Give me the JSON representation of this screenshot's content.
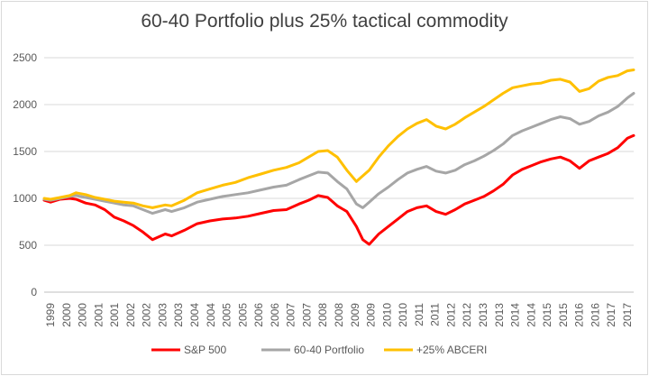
{
  "chart_data": {
    "type": "line",
    "title": "60-40 Portfolio plus 25% tactical commodity",
    "xlabel": "",
    "ylabel": "",
    "ylim": [
      0,
      2500
    ],
    "yticks": [
      "0",
      "500",
      "1000",
      "1500",
      "2000",
      "2500"
    ],
    "xticks": [
      "1999",
      "2000",
      "2000",
      "2001",
      "2001",
      "2002",
      "2002",
      "2003",
      "2003",
      "2004",
      "2004",
      "2005",
      "2005",
      "2006",
      "2006",
      "2007",
      "2007",
      "2008",
      "2008",
      "2009",
      "2009",
      "2010",
      "2010",
      "2011",
      "2011",
      "2012",
      "2012",
      "2013",
      "2013",
      "2014",
      "2014",
      "2015",
      "2015",
      "2016",
      "2016",
      "2017",
      "2017"
    ],
    "grid": "horizontal",
    "legend_position": "bottom",
    "x": [
      1999.0,
      1999.2,
      1999.5,
      1999.8,
      2000.0,
      2000.3,
      2000.6,
      2000.9,
      2001.2,
      2001.5,
      2001.8,
      2002.1,
      2002.4,
      2002.8,
      2003.0,
      2003.4,
      2003.8,
      2004.2,
      2004.6,
      2005.0,
      2005.4,
      2005.8,
      2006.2,
      2006.6,
      2007.0,
      2007.3,
      2007.6,
      2007.9,
      2008.2,
      2008.5,
      2008.8,
      2009.0,
      2009.2,
      2009.5,
      2009.8,
      2010.1,
      2010.4,
      2010.7,
      2011.0,
      2011.3,
      2011.6,
      2011.9,
      2012.2,
      2012.5,
      2012.8,
      2013.1,
      2013.4,
      2013.7,
      2014.0,
      2014.3,
      2014.6,
      2014.9,
      2015.2,
      2015.5,
      2015.8,
      2016.1,
      2016.4,
      2016.7,
      2017.0,
      2017.3,
      2017.5
    ],
    "series": [
      {
        "name": "S&P 500",
        "color": "#ff0000",
        "values": [
          980,
          960,
          990,
          1000,
          990,
          950,
          930,
          880,
          800,
          760,
          710,
          640,
          560,
          620,
          600,
          660,
          730,
          760,
          780,
          790,
          810,
          840,
          870,
          880,
          940,
          980,
          1030,
          1010,
          920,
          860,
          700,
          560,
          510,
          620,
          700,
          780,
          860,
          900,
          920,
          860,
          830,
          880,
          940,
          980,
          1020,
          1080,
          1150,
          1250,
          1310,
          1350,
          1390,
          1420,
          1440,
          1400,
          1320,
          1400,
          1440,
          1480,
          1540,
          1640,
          1670
        ]
      },
      {
        "name": "60-40 Portfolio",
        "color": "#a6a6a6",
        "values": [
          990,
          980,
          1000,
          1020,
          1030,
          1010,
          990,
          970,
          950,
          930,
          920,
          880,
          840,
          880,
          860,
          900,
          960,
          990,
          1020,
          1040,
          1060,
          1090,
          1120,
          1140,
          1200,
          1240,
          1280,
          1270,
          1180,
          1100,
          940,
          900,
          960,
          1050,
          1120,
          1200,
          1270,
          1310,
          1340,
          1290,
          1270,
          1300,
          1360,
          1400,
          1450,
          1510,
          1580,
          1670,
          1720,
          1760,
          1800,
          1840,
          1870,
          1850,
          1790,
          1820,
          1880,
          1920,
          1980,
          2070,
          2120
        ]
      },
      {
        "name": "+25% ABCERI",
        "color": "#ffc000",
        "values": [
          1000,
          990,
          1010,
          1030,
          1060,
          1040,
          1010,
          990,
          970,
          960,
          950,
          920,
          900,
          930,
          920,
          980,
          1060,
          1100,
          1140,
          1170,
          1220,
          1260,
          1300,
          1330,
          1380,
          1440,
          1500,
          1510,
          1440,
          1300,
          1180,
          1240,
          1300,
          1440,
          1560,
          1660,
          1740,
          1800,
          1840,
          1770,
          1740,
          1790,
          1860,
          1920,
          1980,
          2050,
          2120,
          2180,
          2200,
          2220,
          2230,
          2260,
          2270,
          2240,
          2140,
          2170,
          2250,
          2290,
          2310,
          2360,
          2370
        ]
      }
    ]
  }
}
